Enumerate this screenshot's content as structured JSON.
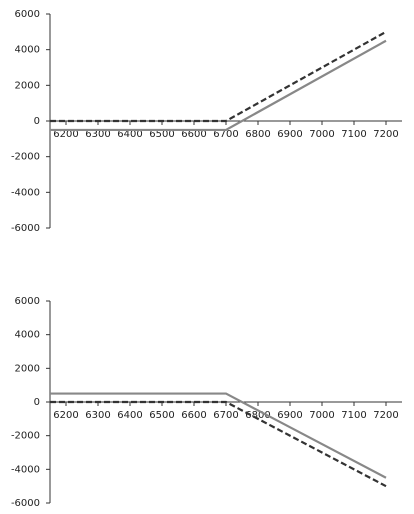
{
  "chart_data": [
    {
      "type": "line",
      "xlim": [
        6150,
        7250
      ],
      "ylim": [
        -6000,
        6000
      ],
      "xticks": [
        6200,
        6300,
        6400,
        6500,
        6600,
        6700,
        6800,
        6900,
        7000,
        7100,
        7200
      ],
      "yticks": [
        -6000,
        -4000,
        -2000,
        0,
        2000,
        4000,
        6000
      ],
      "x": [
        6150,
        6700,
        7200
      ],
      "series": [
        {
          "color": "#888888",
          "dashed": false,
          "values": [
            -500,
            -500,
            4500
          ]
        },
        {
          "color": "#333333",
          "dashed": true,
          "values": [
            0,
            0,
            5000
          ]
        }
      ]
    },
    {
      "type": "line",
      "xlim": [
        6150,
        7250
      ],
      "ylim": [
        -6000,
        6000
      ],
      "xticks": [
        6200,
        6300,
        6400,
        6500,
        6600,
        6700,
        6800,
        6900,
        7000,
        7100,
        7200
      ],
      "yticks": [
        -6000,
        -4000,
        -2000,
        0,
        2000,
        4000,
        6000
      ],
      "x": [
        6150,
        6700,
        7200
      ],
      "series": [
        {
          "color": "#888888",
          "dashed": false,
          "values": [
            500,
            500,
            -4500
          ]
        },
        {
          "color": "#333333",
          "dashed": true,
          "values": [
            0,
            0,
            -5000
          ]
        }
      ]
    }
  ]
}
